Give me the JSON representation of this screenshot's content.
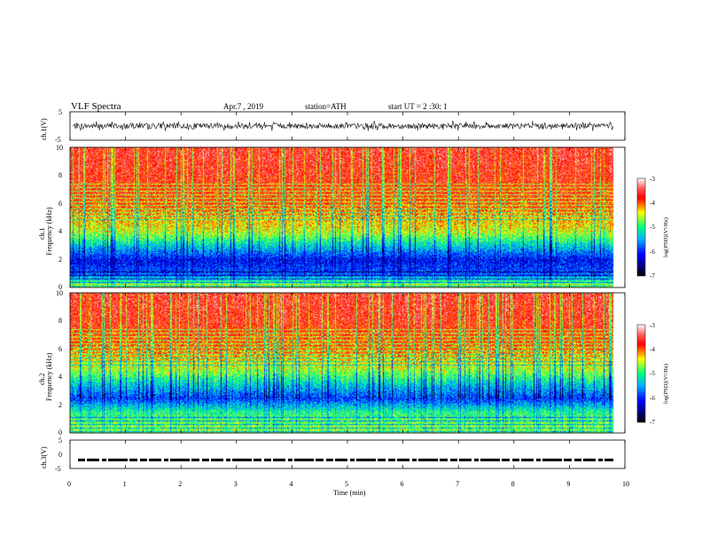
{
  "header": {
    "title": "VLF  Spectra",
    "date": "Apr.7  , 2019",
    "station": "station=ATH",
    "start": "start  UT  =   2  :30: 1"
  },
  "colors": {
    "spectral_scale": [
      "#000000",
      "#0000ff",
      "#00b4ff",
      "#00ff80",
      "#ffff00",
      "#ff0000",
      "#ffffff"
    ]
  },
  "chart_data": [
    {
      "type": "line",
      "panel": "ch1-waveform",
      "ylabel": "ch.1(V)",
      "ylim": [
        -5,
        5
      ],
      "y_ticklabels": [
        "5",
        "-5"
      ],
      "xlim": [
        0,
        10
      ],
      "series": [
        {
          "envelope_center": 0.0,
          "typical_amplitude": 1.0,
          "spikes_to": 1.8
        }
      ]
    },
    {
      "type": "heatmap",
      "panel": "ch1-spectrogram",
      "ylabel": "ch.1\nFrequency (kHz)",
      "ylim": [
        0,
        10
      ],
      "y_ticklabels": [
        "0",
        "2",
        "4",
        "6",
        "8",
        "10"
      ],
      "xlim": [
        0,
        10
      ],
      "data_end_min": 9.8,
      "colorbar": {
        "label": "log(PSD)(V²/Hz)",
        "range": [
          -7,
          -3
        ],
        "ticklabels": [
          "-3",
          "-4",
          "-5",
          "-6",
          "-7"
        ]
      },
      "frequency_profile_logpsd": [
        {
          "f_khz": 0.2,
          "value": -4.6
        },
        {
          "f_khz": 1.0,
          "value": -5.8
        },
        {
          "f_khz": 2.0,
          "value": -6.1
        },
        {
          "f_khz": 3.0,
          "value": -5.3
        },
        {
          "f_khz": 4.0,
          "value": -4.5
        },
        {
          "f_khz": 5.0,
          "value": -4.2
        },
        {
          "f_khz": 6.0,
          "value": -3.9
        },
        {
          "f_khz": 8.0,
          "value": -3.7
        },
        {
          "f_khz": 10.0,
          "value": -3.6
        }
      ]
    },
    {
      "type": "heatmap",
      "panel": "ch2-spectrogram",
      "ylabel": "ch.2\nFrequency (kHz)",
      "ylim": [
        0,
        10
      ],
      "y_ticklabels": [
        "0",
        "2",
        "4",
        "6",
        "8",
        "10"
      ],
      "xlim": [
        0,
        10
      ],
      "data_end_min": 9.8,
      "colorbar": {
        "label": "log(PSD)(V²/Hz)",
        "range": [
          -7,
          -3
        ],
        "ticklabels": [
          "-3",
          "-4",
          "-5",
          "-6",
          "-7"
        ]
      },
      "frequency_profile_logpsd": [
        {
          "f_khz": 0.5,
          "value": -4.7
        },
        {
          "f_khz": 1.5,
          "value": -5.0
        },
        {
          "f_khz": 2.5,
          "value": -5.9
        },
        {
          "f_khz": 3.5,
          "value": -5.3
        },
        {
          "f_khz": 4.5,
          "value": -4.6
        },
        {
          "f_khz": 6.0,
          "value": -4.0
        },
        {
          "f_khz": 8.0,
          "value": -3.7
        },
        {
          "f_khz": 10.0,
          "value": -3.6
        }
      ]
    },
    {
      "type": "line",
      "panel": "ch3-waveform",
      "ylabel": "ch.3(V)",
      "ylim": [
        -5,
        5
      ],
      "y_ticklabels": [
        "5",
        "0",
        "-5"
      ],
      "xlim": [
        0,
        10
      ],
      "xlabel": "Time  (min)",
      "x_ticklabels": [
        "0",
        "1",
        "2",
        "3",
        "4",
        "5",
        "6",
        "7",
        "8",
        "9",
        "10"
      ],
      "series": [
        {
          "level_v": -2.0,
          "style": "dashed-pulses"
        }
      ]
    }
  ]
}
